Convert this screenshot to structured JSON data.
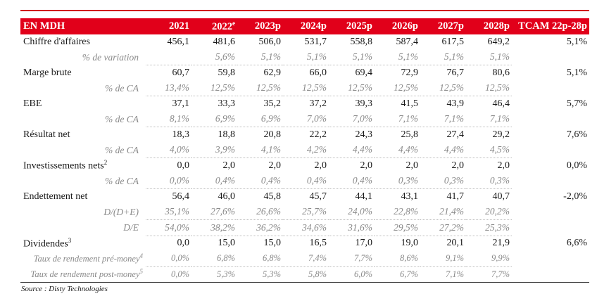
{
  "header": {
    "label": "EN MDH",
    "years": [
      "2021",
      "2022e",
      "2023p",
      "2024p",
      "2025p",
      "2026p",
      "2027p",
      "2028p"
    ],
    "last": "TCAM 22p-28p"
  },
  "rows": [
    {
      "type": "main",
      "label": "Chiffre d'affaires",
      "values": [
        "456,1",
        "481,6",
        "506,0",
        "531,7",
        "558,8",
        "587,4",
        "617,5",
        "649,2"
      ],
      "last": "5,1%"
    },
    {
      "type": "sub",
      "label": "% de variation",
      "values": [
        "",
        "5,6%",
        "5,1%",
        "5,1%",
        "5,1%",
        "5,1%",
        "5,1%",
        "5,1%"
      ],
      "last": ""
    },
    {
      "type": "main",
      "label": "Marge brute",
      "values": [
        "60,7",
        "59,8",
        "62,9",
        "66,0",
        "69,4",
        "72,9",
        "76,7",
        "80,6"
      ],
      "last": "5,1%"
    },
    {
      "type": "sub",
      "label": "% de CA",
      "values": [
        "13,4%",
        "12,5%",
        "12,5%",
        "12,5%",
        "12,5%",
        "12,5%",
        "12,5%",
        "12,5%"
      ],
      "last": ""
    },
    {
      "type": "main",
      "label": "EBE",
      "values": [
        "37,1",
        "33,3",
        "35,2",
        "37,2",
        "39,3",
        "41,5",
        "43,9",
        "46,4"
      ],
      "last": "5,7%"
    },
    {
      "type": "sub",
      "label": "% de CA",
      "values": [
        "8,1%",
        "6,9%",
        "6,9%",
        "7,0%",
        "7,0%",
        "7,1%",
        "7,1%",
        "7,1%"
      ],
      "last": ""
    },
    {
      "type": "main",
      "label": "Résultat net",
      "values": [
        "18,3",
        "18,8",
        "20,8",
        "22,2",
        "24,3",
        "25,8",
        "27,4",
        "29,2"
      ],
      "last": "7,6%"
    },
    {
      "type": "sub",
      "label": "% de CA",
      "values": [
        "4,0%",
        "3,9%",
        "4,1%",
        "4,2%",
        "4,4%",
        "4,4%",
        "4,4%",
        "4,5%"
      ],
      "last": ""
    },
    {
      "type": "main",
      "label": "Investissements nets2",
      "values": [
        "0,0",
        "2,0",
        "2,0",
        "2,0",
        "2,0",
        "2,0",
        "2,0",
        "2,0"
      ],
      "last": "0,0%"
    },
    {
      "type": "sub",
      "label": "% de CA",
      "values": [
        "0,0%",
        "0,4%",
        "0,4%",
        "0,4%",
        "0,4%",
        "0,3%",
        "0,3%",
        "0,3%"
      ],
      "last": ""
    },
    {
      "type": "main",
      "label": "Endettement net",
      "values": [
        "56,4",
        "46,0",
        "45,8",
        "45,7",
        "44,1",
        "43,1",
        "41,7",
        "40,7"
      ],
      "last": "-2,0%"
    },
    {
      "type": "sub",
      "label": "D/(D+E)",
      "values": [
        "35,1%",
        "27,6%",
        "26,6%",
        "25,7%",
        "24,0%",
        "22,8%",
        "21,4%",
        "20,2%"
      ],
      "last": ""
    },
    {
      "type": "sub",
      "label": "D/E",
      "values": [
        "54,0%",
        "38,2%",
        "36,2%",
        "34,6%",
        "31,6%",
        "29,5%",
        "27,2%",
        "25,3%"
      ],
      "last": ""
    },
    {
      "type": "main",
      "label": "Dividendes3",
      "values": [
        "0,0",
        "15,0",
        "15,0",
        "16,5",
        "17,0",
        "19,0",
        "20,1",
        "21,9"
      ],
      "last": "6,6%"
    },
    {
      "type": "sub2",
      "label": "Taux de rendement pré-money4",
      "values": [
        "0,0%",
        "6,8%",
        "6,8%",
        "7,4%",
        "7,7%",
        "8,6%",
        "9,1%",
        "9,9%"
      ],
      "last": ""
    },
    {
      "type": "sub2",
      "label": "Taux de rendement post-money5",
      "values": [
        "0,0%",
        "5,3%",
        "5,3%",
        "5,8%",
        "6,0%",
        "6,7%",
        "7,1%",
        "7,7%"
      ],
      "last": ""
    }
  ],
  "source": "Source : Disty Technologies"
}
